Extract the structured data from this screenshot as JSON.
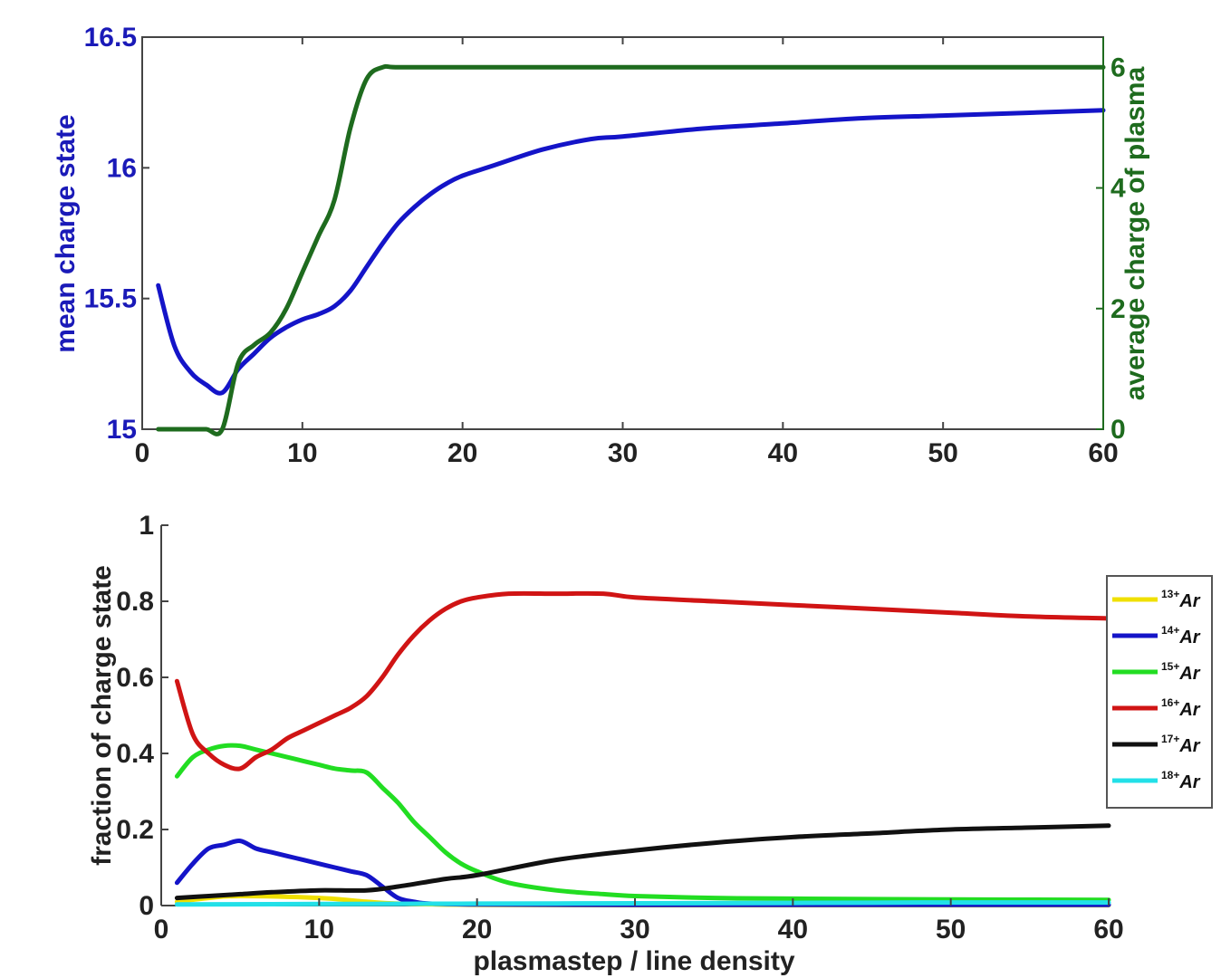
{
  "chart_data": [
    {
      "type": "line",
      "title": "",
      "xlabel": "",
      "ylabel_left": "mean charge state",
      "ylabel_right": "average charge of plasma",
      "xlim": [
        0,
        60
      ],
      "ylim_left": [
        15,
        16.5
      ],
      "ylim_right": [
        0,
        6.5
      ],
      "xticks": [
        "0",
        "10",
        "20",
        "30",
        "40",
        "50",
        "60"
      ],
      "yticks_left": [
        "15",
        "15.5",
        "16",
        "16.5"
      ],
      "yticks_right": [
        "0",
        "2",
        "4",
        "6"
      ],
      "grid": false,
      "colors": {
        "left_axis": "#1a1ab8",
        "right_axis": "#1e6b1e"
      },
      "series": [
        {
          "axis": "left",
          "color": "#1414c8",
          "x": [
            1,
            2,
            3,
            4,
            5,
            6,
            7,
            8,
            9,
            10,
            11,
            12,
            13,
            14,
            15,
            16,
            17,
            18,
            19,
            20,
            22,
            25,
            28,
            30,
            35,
            40,
            45,
            50,
            55,
            60
          ],
          "y": [
            15.55,
            15.32,
            15.22,
            15.17,
            15.14,
            15.23,
            15.29,
            15.35,
            15.39,
            15.42,
            15.44,
            15.47,
            15.53,
            15.62,
            15.71,
            15.79,
            15.85,
            15.9,
            15.94,
            15.97,
            16.01,
            16.07,
            16.11,
            16.12,
            16.15,
            16.17,
            16.19,
            16.2,
            16.21,
            16.22
          ]
        },
        {
          "axis": "right",
          "color": "#1e6b1e",
          "x": [
            1,
            2,
            3,
            4,
            5,
            6,
            7,
            8,
            9,
            10,
            11,
            12,
            13,
            14,
            15,
            16,
            20,
            30,
            40,
            50,
            60
          ],
          "y": [
            0,
            0,
            0,
            0,
            0,
            1.1,
            1.4,
            1.6,
            2.0,
            2.6,
            3.2,
            3.8,
            5.0,
            5.8,
            6.0,
            6.0,
            6.0,
            6.0,
            6.0,
            6.0,
            6.0
          ]
        }
      ]
    },
    {
      "type": "line",
      "title": "",
      "xlabel": "plasmastep / line density",
      "ylabel": "fraction of charge state",
      "xlim": [
        0,
        60
      ],
      "ylim": [
        0,
        1
      ],
      "xticks": [
        "0",
        "10",
        "20",
        "30",
        "40",
        "50",
        "60"
      ],
      "yticks": [
        "0",
        "0.2",
        "0.4",
        "0.6",
        "0.8",
        "1"
      ],
      "grid": false,
      "legend": "right",
      "series": [
        {
          "name_sup": "13+",
          "name_base": "Ar",
          "color": "#f0e000",
          "x": [
            1,
            3,
            5,
            10,
            13,
            15,
            20,
            30,
            40,
            50,
            60
          ],
          "y": [
            0.01,
            0.02,
            0.025,
            0.02,
            0.01,
            0.005,
            0.002,
            0.001,
            0.001,
            0.001,
            0.001
          ]
        },
        {
          "name_sup": "14+",
          "name_base": "Ar",
          "color": "#1414c8",
          "x": [
            1,
            2,
            3,
            4,
            5,
            6,
            7,
            8,
            9,
            10,
            11,
            12,
            13,
            14,
            15,
            16,
            17,
            20,
            30,
            40,
            50,
            60
          ],
          "y": [
            0.06,
            0.11,
            0.15,
            0.16,
            0.17,
            0.15,
            0.14,
            0.13,
            0.12,
            0.11,
            0.1,
            0.09,
            0.08,
            0.05,
            0.02,
            0.01,
            0.005,
            0.003,
            0.002,
            0.002,
            0.002,
            0.002
          ]
        },
        {
          "name_sup": "15+",
          "name_base": "Ar",
          "color": "#22dd22",
          "x": [
            1,
            2,
            3,
            4,
            5,
            6,
            7,
            8,
            9,
            10,
            11,
            12,
            13,
            14,
            15,
            16,
            17,
            18,
            19,
            20,
            22,
            25,
            28,
            30,
            35,
            40,
            50,
            60
          ],
          "y": [
            0.34,
            0.39,
            0.41,
            0.42,
            0.42,
            0.41,
            0.4,
            0.39,
            0.38,
            0.37,
            0.36,
            0.355,
            0.35,
            0.31,
            0.27,
            0.22,
            0.18,
            0.14,
            0.11,
            0.09,
            0.06,
            0.04,
            0.03,
            0.025,
            0.02,
            0.018,
            0.016,
            0.015
          ]
        },
        {
          "name_sup": "16+",
          "name_base": "Ar",
          "color": "#d01414",
          "x": [
            1,
            2,
            3,
            4,
            5,
            6,
            7,
            8,
            9,
            10,
            11,
            12,
            13,
            14,
            15,
            16,
            17,
            18,
            19,
            20,
            22,
            25,
            28,
            30,
            35,
            40,
            45,
            50,
            55,
            60
          ],
          "y": [
            0.59,
            0.45,
            0.4,
            0.37,
            0.36,
            0.39,
            0.41,
            0.44,
            0.46,
            0.48,
            0.5,
            0.52,
            0.55,
            0.6,
            0.66,
            0.71,
            0.75,
            0.78,
            0.8,
            0.81,
            0.82,
            0.82,
            0.82,
            0.81,
            0.8,
            0.79,
            0.78,
            0.77,
            0.76,
            0.755
          ]
        },
        {
          "name_sup": "17+",
          "name_base": "Ar",
          "color": "#111111",
          "x": [
            1,
            3,
            5,
            7,
            10,
            13,
            15,
            18,
            20,
            25,
            30,
            35,
            40,
            45,
            50,
            55,
            60
          ],
          "y": [
            0.02,
            0.025,
            0.03,
            0.035,
            0.04,
            0.04,
            0.05,
            0.07,
            0.08,
            0.12,
            0.145,
            0.165,
            0.18,
            0.19,
            0.2,
            0.205,
            0.21
          ]
        },
        {
          "name_sup": "18+",
          "name_base": "Ar",
          "color": "#22e0e8",
          "x": [
            1,
            10,
            20,
            30,
            40,
            50,
            60
          ],
          "y": [
            0.003,
            0.004,
            0.005,
            0.006,
            0.007,
            0.008,
            0.008
          ]
        }
      ]
    }
  ]
}
